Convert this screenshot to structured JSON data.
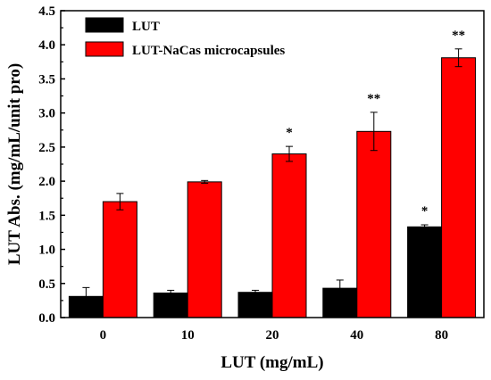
{
  "chart_data": {
    "type": "bar",
    "xlabel": "LUT (mg/mL)",
    "ylabel": "LUT Abs. (mg/mL/unit pro)",
    "ylim": [
      0,
      4.5
    ],
    "yticks": [
      "0.0",
      "0.5",
      "1.0",
      "1.5",
      "2.0",
      "2.5",
      "3.0",
      "3.5",
      "4.0",
      "4.5"
    ],
    "categories": [
      "0",
      "10",
      "20",
      "40",
      "80"
    ],
    "legend_position": "top-left",
    "grid": false,
    "series": [
      {
        "name": "LUT",
        "color": "#000000",
        "values": [
          0.31,
          0.36,
          0.37,
          0.43,
          1.33
        ],
        "errors": [
          0.13,
          0.04,
          0.03,
          0.12,
          0.03
        ],
        "annotations": [
          "",
          "",
          "",
          "",
          "*"
        ]
      },
      {
        "name": "LUT-NaCas microcapsules",
        "color": "#ff0000",
        "values": [
          1.7,
          1.99,
          2.4,
          2.73,
          3.81
        ],
        "errors": [
          0.12,
          0.02,
          0.11,
          0.28,
          0.13
        ],
        "annotations": [
          "",
          "",
          "*",
          "**",
          "**"
        ]
      }
    ]
  }
}
